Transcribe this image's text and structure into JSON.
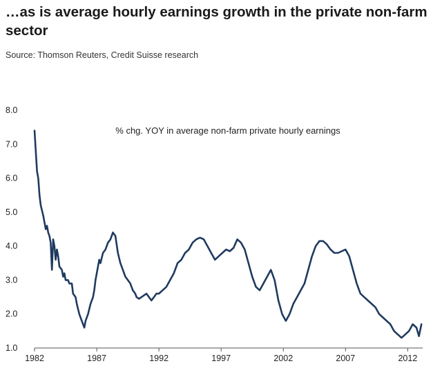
{
  "title": "…as is average hourly earnings growth in the private non-farm sector",
  "source": "Source: Thomson Reuters, Credit Suisse research",
  "chart_data": {
    "type": "line",
    "title": "…as is average hourly earnings growth in the private non-farm sector",
    "annotation": "% chg. YOY in average non-farm private hourly earnings",
    "xlabel": "",
    "ylabel": "",
    "xlim": [
      1982,
      2013.2
    ],
    "ylim": [
      1.0,
      8.0
    ],
    "y_ticks": [
      1.0,
      2.0,
      3.0,
      4.0,
      5.0,
      6.0,
      7.0,
      8.0
    ],
    "y_tick_labels": [
      "1.0",
      "2.0",
      "3.0",
      "4.0",
      "5.0",
      "6.0",
      "7.0",
      "8.0"
    ],
    "x_ticks": [
      1982,
      1987,
      1992,
      1997,
      2002,
      2007,
      2012
    ],
    "x_tick_labels": [
      "1982",
      "1987",
      "1992",
      "1997",
      "2002",
      "2007",
      "2012"
    ],
    "grid": false,
    "color": "#1f3a5f",
    "series": [
      {
        "name": "% chg. YOY in average non-farm private hourly earnings",
        "x": [
          1982.0,
          1982.1,
          1982.2,
          1982.3,
          1982.4,
          1982.5,
          1982.7,
          1982.8,
          1982.9,
          1983.0,
          1983.1,
          1983.2,
          1983.3,
          1983.4,
          1983.5,
          1983.6,
          1983.7,
          1983.8,
          1983.9,
          1984.0,
          1984.2,
          1984.3,
          1984.4,
          1984.5,
          1984.7,
          1984.8,
          1985.0,
          1985.1,
          1985.3,
          1985.4,
          1985.6,
          1985.8,
          1986.0,
          1986.1,
          1986.3,
          1986.5,
          1986.7,
          1986.8,
          1986.9,
          1987.0,
          1987.1,
          1987.2,
          1987.3,
          1987.5,
          1987.7,
          1987.9,
          1988.1,
          1988.3,
          1988.5,
          1988.7,
          1988.9,
          1989.1,
          1989.3,
          1989.5,
          1989.7,
          1989.9,
          1990.1,
          1990.2,
          1990.4,
          1990.6,
          1990.8,
          1991.0,
          1991.2,
          1991.4,
          1991.6,
          1991.8,
          1992.0,
          1992.3,
          1992.6,
          1992.9,
          1993.2,
          1993.5,
          1993.8,
          1994.1,
          1994.4,
          1994.7,
          1995.0,
          1995.3,
          1995.6,
          1995.9,
          1996.2,
          1996.5,
          1996.8,
          1997.1,
          1997.4,
          1997.7,
          1998.0,
          1998.3,
          1998.6,
          1998.9,
          1999.2,
          1999.5,
          1999.8,
          2000.1,
          2000.4,
          2000.7,
          2001.0,
          2001.3,
          2001.6,
          2001.9,
          2002.2,
          2002.5,
          2002.8,
          2003.1,
          2003.4,
          2003.7,
          2004.0,
          2004.3,
          2004.6,
          2004.9,
          2005.2,
          2005.5,
          2005.8,
          2006.1,
          2006.4,
          2006.7,
          2007.0,
          2007.3,
          2007.6,
          2007.9,
          2008.2,
          2008.5,
          2008.8,
          2009.1,
          2009.4,
          2009.7,
          2010.0,
          2010.3,
          2010.6,
          2010.9,
          2011.2,
          2011.5,
          2011.8,
          2012.1,
          2012.4,
          2012.7,
          2012.9,
          2013.1
        ],
        "values": [
          7.4,
          6.8,
          6.2,
          6.0,
          5.5,
          5.2,
          4.9,
          4.7,
          4.5,
          4.6,
          4.4,
          4.3,
          4.1,
          3.3,
          4.2,
          4.0,
          3.6,
          3.9,
          3.7,
          3.4,
          3.3,
          3.1,
          3.2,
          3.0,
          3.0,
          2.9,
          2.9,
          2.6,
          2.5,
          2.3,
          2.0,
          1.8,
          1.6,
          1.8,
          2.0,
          2.3,
          2.5,
          2.7,
          3.0,
          3.2,
          3.4,
          3.6,
          3.5,
          3.8,
          3.9,
          4.1,
          4.2,
          4.4,
          4.3,
          3.8,
          3.5,
          3.3,
          3.1,
          3.0,
          2.9,
          2.7,
          2.6,
          2.5,
          2.45,
          2.5,
          2.55,
          2.6,
          2.5,
          2.4,
          2.5,
          2.6,
          2.6,
          2.7,
          2.8,
          3.0,
          3.2,
          3.5,
          3.6,
          3.8,
          3.9,
          4.1,
          4.2,
          4.25,
          4.2,
          4.0,
          3.8,
          3.6,
          3.7,
          3.8,
          3.9,
          3.85,
          3.95,
          4.2,
          4.1,
          3.9,
          3.5,
          3.1,
          2.8,
          2.7,
          2.9,
          3.1,
          3.3,
          3.0,
          2.4,
          2.0,
          1.8,
          2.0,
          2.3,
          2.5,
          2.7,
          2.9,
          3.3,
          3.7,
          4.0,
          4.15,
          4.15,
          4.05,
          3.9,
          3.8,
          3.8,
          3.85,
          3.9,
          3.7,
          3.3,
          2.9,
          2.6,
          2.5,
          2.4,
          2.3,
          2.2,
          2.0,
          1.9,
          1.8,
          1.7,
          1.5,
          1.4,
          1.3,
          1.4,
          1.5,
          1.7,
          1.6,
          1.35,
          1.7
        ]
      }
    ]
  }
}
